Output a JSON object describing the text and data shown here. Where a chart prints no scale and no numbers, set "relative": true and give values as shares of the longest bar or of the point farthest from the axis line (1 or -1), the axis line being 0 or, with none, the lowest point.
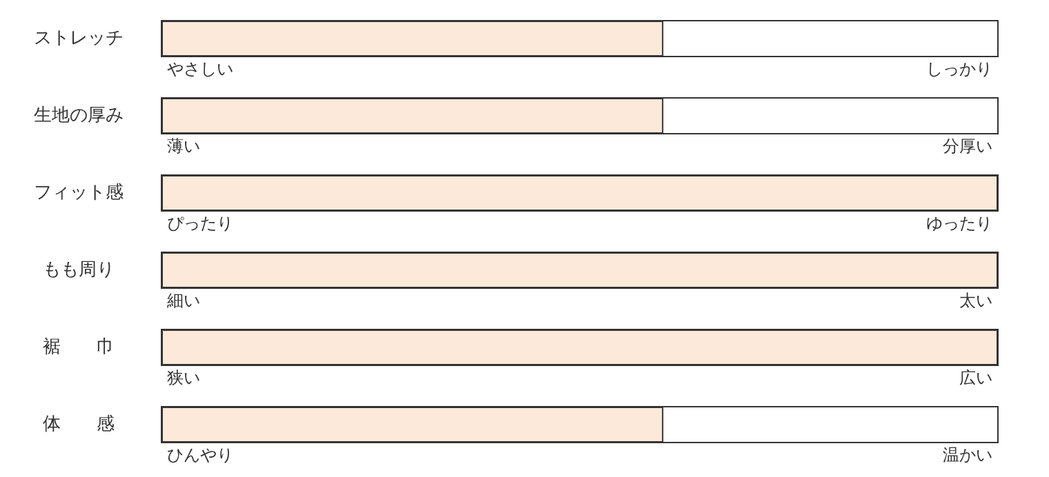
{
  "chart_data": {
    "type": "bar",
    "orientation": "horizontal",
    "relative": true,
    "categories": [
      "ストレッチ",
      "生地の厚み",
      "フィット感",
      "もも周り",
      "裾　　巾",
      "体　　感"
    ],
    "values": [
      0.6,
      0.6,
      1,
      1,
      1,
      0.6
    ],
    "color": "#fde9d9",
    "annotations": [
      "やさしい",
      "しっかり",
      "薄い",
      "分厚い",
      "ぴったり",
      "ゆったり",
      "細い",
      "太い",
      "狭い",
      "広い",
      "ひんやり",
      "温かい"
    ]
  }
}
